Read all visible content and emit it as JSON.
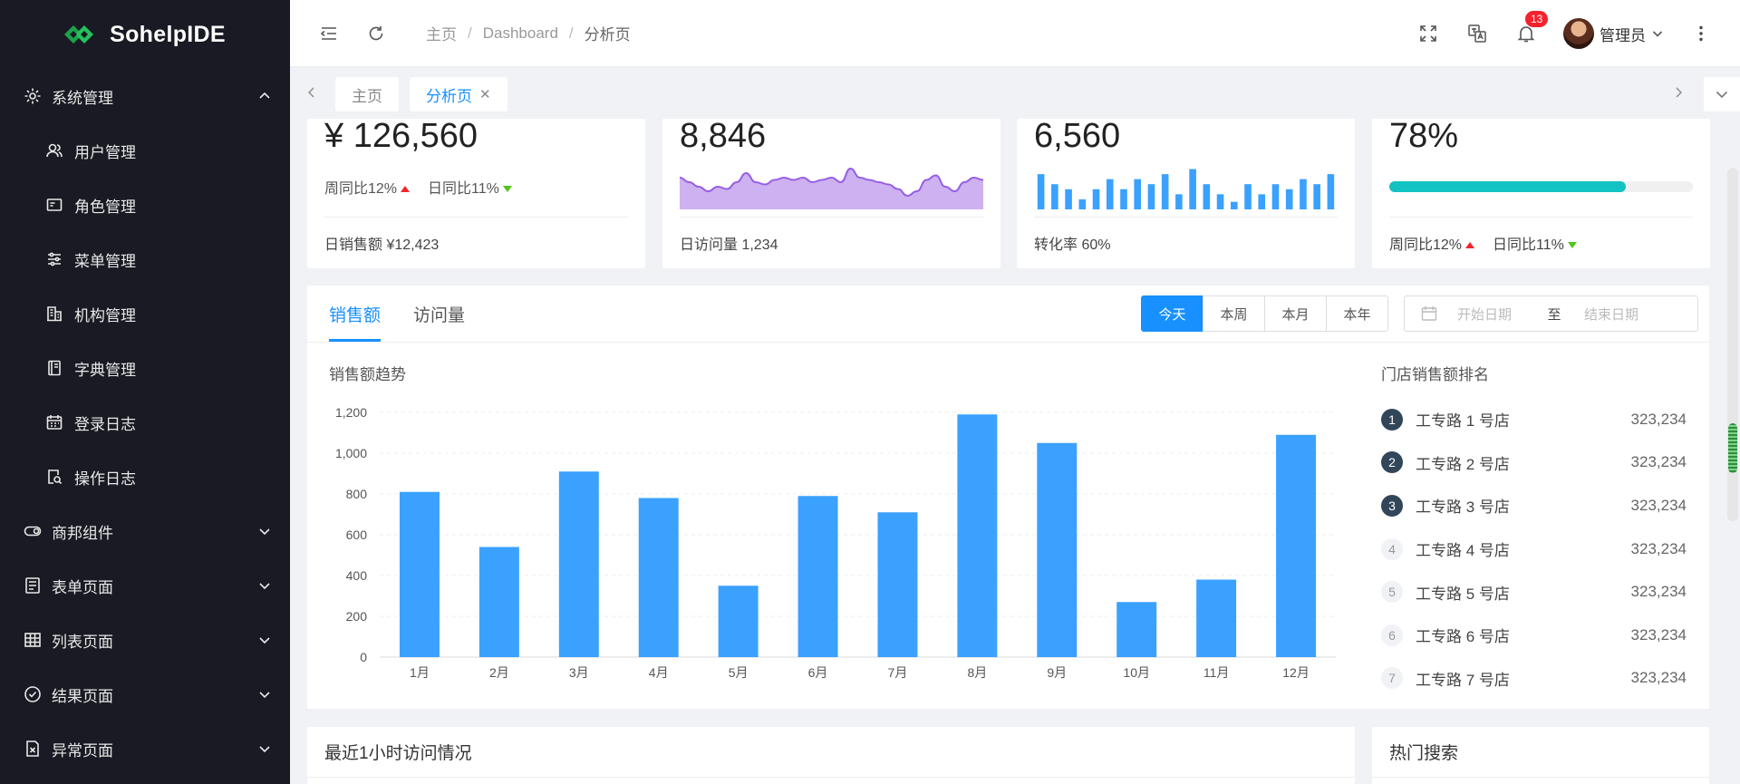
{
  "app": {
    "logo_text": "SohelpIDE"
  },
  "sidebar": {
    "groups": [
      {
        "label": "系统管理",
        "icon": "gear-icon",
        "expanded": true,
        "items": [
          {
            "label": "用户管理",
            "icon": "user-icon"
          },
          {
            "label": "角色管理",
            "icon": "id-card-icon"
          },
          {
            "label": "菜单管理",
            "icon": "sliders-icon"
          },
          {
            "label": "机构管理",
            "icon": "building-icon"
          },
          {
            "label": "字典管理",
            "icon": "book-icon"
          },
          {
            "label": "登录日志",
            "icon": "calendar-icon"
          },
          {
            "label": "操作日志",
            "icon": "file-search-icon"
          }
        ]
      },
      {
        "label": "商邦组件",
        "icon": "toggle-icon"
      },
      {
        "label": "表单页面",
        "icon": "form-icon"
      },
      {
        "label": "列表页面",
        "icon": "table-icon"
      },
      {
        "label": "结果页面",
        "icon": "check-circle-icon"
      },
      {
        "label": "异常页面",
        "icon": "file-x-icon"
      }
    ]
  },
  "header": {
    "breadcrumb": [
      "主页",
      "Dashboard",
      "分析页"
    ],
    "notifications": "13",
    "user_name": "管理员"
  },
  "tabs": [
    {
      "label": "主页"
    },
    {
      "label": "分析页",
      "closable": true
    }
  ],
  "stats": [
    {
      "value": "¥ 126,560",
      "up_label": "周同比12%",
      "down_label": "日同比11%",
      "footer": "日销售额 ¥12,423"
    },
    {
      "value": "8,846",
      "footer": "日访问量 1,234"
    },
    {
      "value": "6,560",
      "footer": "转化率 60%"
    },
    {
      "value": "78%",
      "progress": 0.78,
      "up_label": "周同比12%",
      "down_label": "日同比11%"
    }
  ],
  "sales": {
    "tabs": [
      "销售额",
      "访问量"
    ],
    "ranges": [
      "今天",
      "本周",
      "本月",
      "本年"
    ],
    "date_start_placeholder": "开始日期",
    "date_sep": "至",
    "date_end_placeholder": "结束日期",
    "chart_title": "销售额趋势",
    "rank_title": "门店销售额排名",
    "rank": [
      {
        "num": "1",
        "name": "工专路 1 号店",
        "value": "323,234"
      },
      {
        "num": "2",
        "name": "工专路 2 号店",
        "value": "323,234"
      },
      {
        "num": "3",
        "name": "工专路 3 号店",
        "value": "323,234"
      },
      {
        "num": "4",
        "name": "工专路 4 号店",
        "value": "323,234"
      },
      {
        "num": "5",
        "name": "工专路 5 号店",
        "value": "323,234"
      },
      {
        "num": "6",
        "name": "工专路 6 号店",
        "value": "323,234"
      },
      {
        "num": "7",
        "name": "工专路 7 号店",
        "value": "323,234"
      }
    ]
  },
  "bottom": {
    "left_title": "最近1小时访问情况",
    "right_title": "热门搜索"
  },
  "colors": {
    "primary": "#1890ff",
    "bar": "#3aa1ff",
    "area": "#975fe4",
    "progress": "#13c2c2",
    "sidebar": "#191a23"
  },
  "chart_data": [
    {
      "type": "bar",
      "categories": [
        "1月",
        "2月",
        "3月",
        "4月",
        "5月",
        "6月",
        "7月",
        "8月",
        "9月",
        "10月",
        "11月",
        "12月"
      ],
      "values": [
        810,
        540,
        910,
        780,
        350,
        790,
        710,
        1190,
        1050,
        270,
        380,
        1090
      ],
      "ylim": [
        0,
        1200
      ],
      "yticks": [
        "0",
        "200",
        "400",
        "600",
        "800",
        "1,000",
        "1,200"
      ],
      "grid": true
    },
    {
      "type": "area",
      "values": [
        7,
        6,
        5,
        4,
        5,
        4.5,
        6,
        8,
        6,
        5.5,
        6.5,
        7,
        6.5,
        7,
        6,
        6.5,
        7,
        6,
        9,
        7,
        6.5,
        6,
        5.5,
        4.5,
        3,
        4,
        6.5,
        7.5,
        5,
        4,
        6,
        7,
        6.5
      ]
    },
    {
      "type": "bar",
      "values": [
        7,
        5,
        4,
        2,
        4,
        6,
        4,
        6,
        5,
        7,
        3,
        8,
        5,
        3,
        1.5,
        5,
        3,
        5,
        4,
        6,
        5,
        7
      ]
    }
  ]
}
